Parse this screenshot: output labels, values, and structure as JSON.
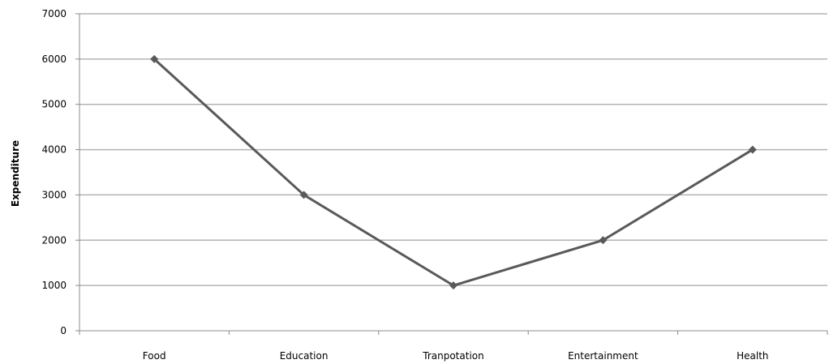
{
  "chart_data": {
    "type": "line",
    "title": "",
    "xlabel": "",
    "ylabel": "Expenditure",
    "categories": [
      "Food",
      "Education",
      "Tranpotation",
      "Entertainment",
      "Health"
    ],
    "series": [
      {
        "values": [
          6000,
          3000,
          1000,
          2000,
          4000
        ]
      }
    ],
    "ylim": [
      0,
      7000
    ],
    "yticks": [
      "0",
      "1000",
      "2000",
      "3000",
      "4000",
      "5000",
      "6000",
      "7000"
    ],
    "grid": true,
    "legend": "none",
    "marker": "diamond",
    "line_color": "#595959",
    "grid_color": "#b3b3b3"
  }
}
